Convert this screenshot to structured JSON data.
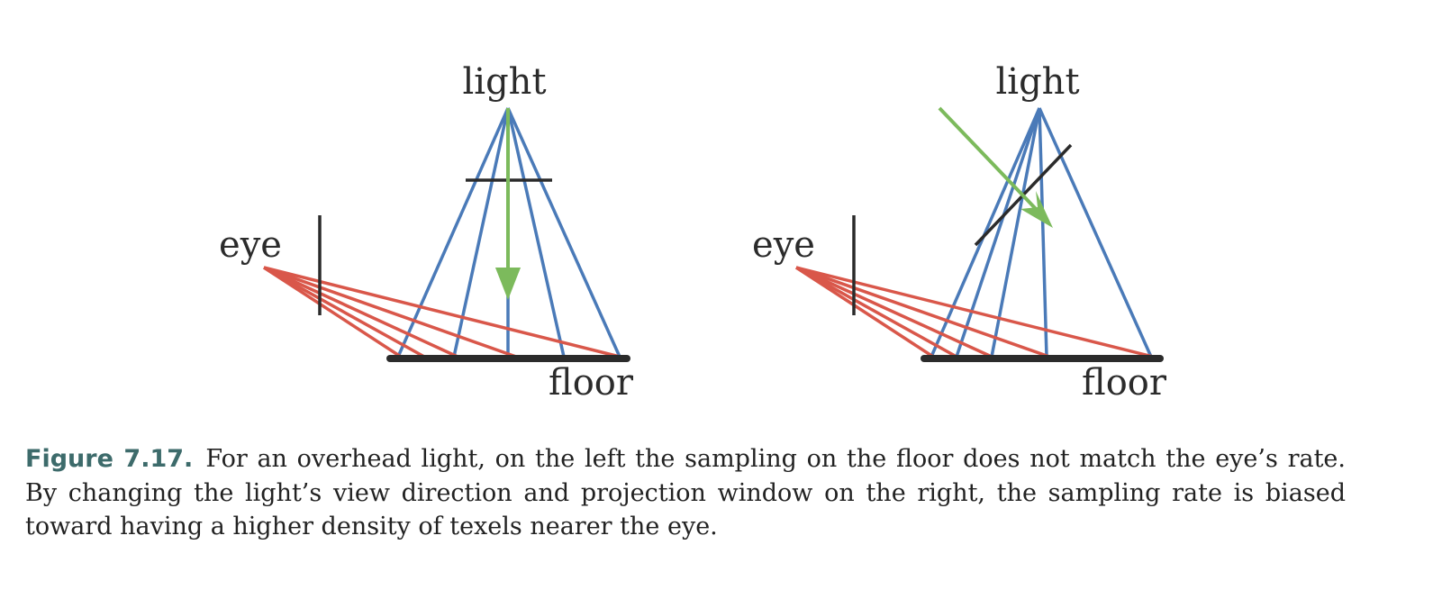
{
  "left_panel": {
    "light_label": "light",
    "eye_label": "eye",
    "floor_label": "floor"
  },
  "right_panel": {
    "light_label": "light",
    "eye_label": "eye",
    "floor_label": "floor"
  },
  "caption": {
    "figure_number": "Figure 7.17.",
    "text": "For an overhead light, on the left the sampling on the floor does not match the eye’s rate. By changing the light’s view direction and projection window on the right, the sampling rate is biased toward having a higher density of texels nearer the eye."
  },
  "colors": {
    "light_ray": "#4a7ab8",
    "eye_ray": "#d9574a",
    "view_direction_arrow": "#7cba5c",
    "floor_and_window": "#2b2b2b",
    "caption_figure_number": "#3d6b6b"
  }
}
